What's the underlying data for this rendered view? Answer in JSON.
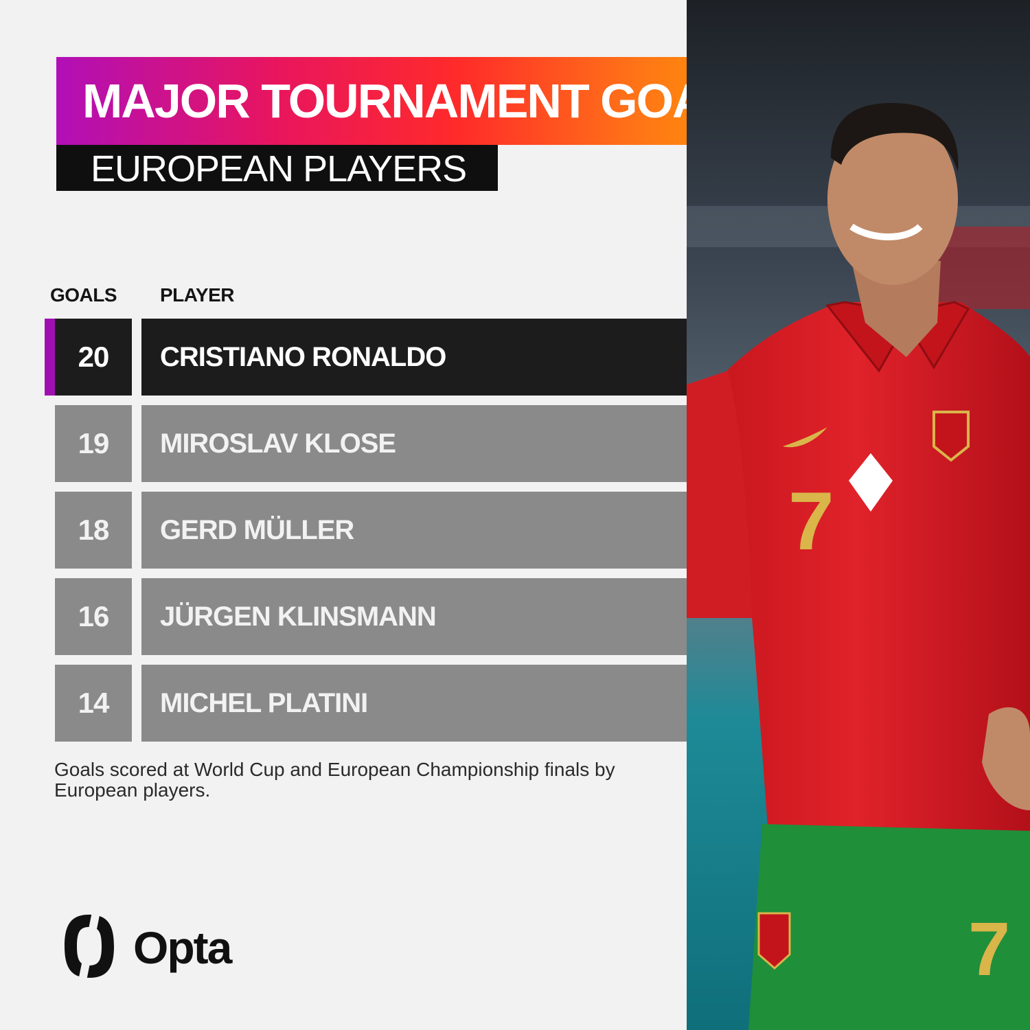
{
  "header": {
    "title": "MAJOR TOURNAMENT GOALS",
    "subtitle": "EUROPEAN PLAYERS"
  },
  "table": {
    "columns": [
      "GOALS",
      "PLAYER"
    ]
  },
  "footnote": "Goals scored at World Cup and European Championship finals by European players.",
  "brand": {
    "name": "Opta"
  },
  "colors": {
    "title_gradient": [
      "#b10fb8",
      "#e8155f",
      "#ff2a2a",
      "#ff7417",
      "#ffa300"
    ],
    "highlight_row": "#1c1c1c",
    "row": "#8a8a8a",
    "accent": "#a010b0"
  },
  "photo": {
    "subject": "footballer in red Portugal shirt number 7"
  },
  "chart_data": {
    "type": "table",
    "columns": [
      "GOALS",
      "PLAYER"
    ],
    "rows": [
      {
        "goals": 20,
        "player": "CRISTIANO RONALDO",
        "highlight": true
      },
      {
        "goals": 19,
        "player": "MIROSLAV KLOSE",
        "highlight": false
      },
      {
        "goals": 18,
        "player": "GERD MÜLLER",
        "highlight": false
      },
      {
        "goals": 16,
        "player": "JÜRGEN KLINSMANN",
        "highlight": false
      },
      {
        "goals": 14,
        "player": "MICHEL PLATINI",
        "highlight": false
      }
    ]
  }
}
